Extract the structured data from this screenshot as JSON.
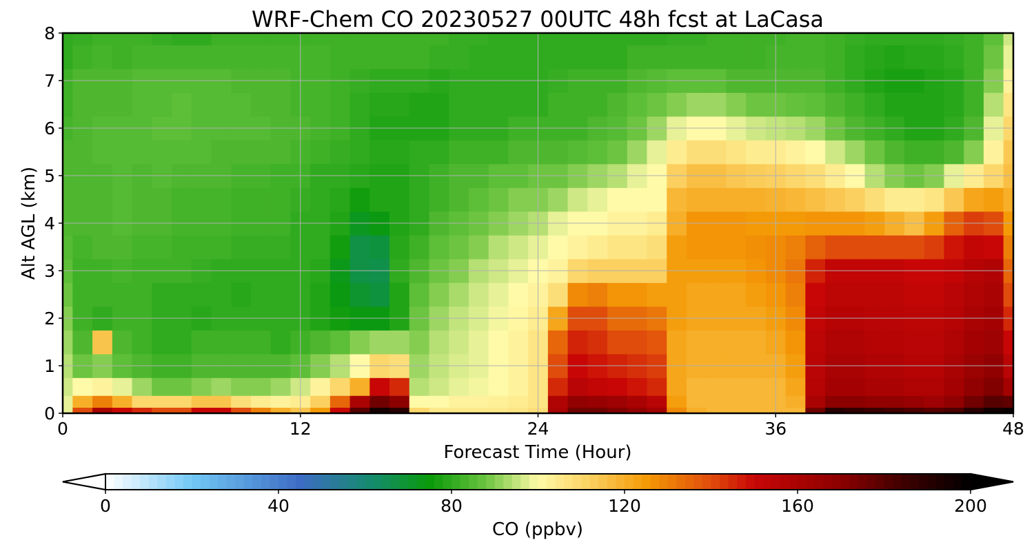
{
  "chart_data": {
    "type": "heatmap",
    "title": "WRF-Chem CO  20230527 00UTC 48h fcst at LaCasa",
    "xlabel": "Forecast Time (Hour)",
    "ylabel": "Alt AGL (km)",
    "xlim": [
      0,
      48
    ],
    "ylim": [
      0,
      8
    ],
    "xticks": [
      0,
      12,
      24,
      36,
      48
    ],
    "yticks": [
      0,
      1,
      2,
      3,
      4,
      5,
      6,
      7,
      8
    ],
    "grid": true,
    "colorbar": {
      "label": "CO  (ppbv)",
      "min": 0,
      "max": 200,
      "ticks": [
        0,
        40,
        80,
        120,
        160,
        200
      ],
      "extend": "both",
      "orientation": "horizontal",
      "stops": [
        {
          "v": 0,
          "c": "#ffffff"
        },
        {
          "v": 20,
          "c": "#72c8f5"
        },
        {
          "v": 45,
          "c": "#3d6cc4"
        },
        {
          "v": 62,
          "c": "#148c6a"
        },
        {
          "v": 75,
          "c": "#0a9a0a"
        },
        {
          "v": 88,
          "c": "#6cc440"
        },
        {
          "v": 100,
          "c": "#fffaa8"
        },
        {
          "v": 112,
          "c": "#fbd060"
        },
        {
          "v": 125,
          "c": "#f49a06"
        },
        {
          "v": 140,
          "c": "#e04c0c"
        },
        {
          "v": 150,
          "c": "#c80606"
        },
        {
          "v": 170,
          "c": "#8c0000"
        },
        {
          "v": 185,
          "c": "#3c0000"
        },
        {
          "v": 200,
          "c": "#000000"
        }
      ]
    },
    "x_hours": [
      0,
      1,
      2,
      3,
      4,
      5,
      6,
      7,
      8,
      9,
      10,
      11,
      12,
      13,
      14,
      15,
      16,
      17,
      18,
      19,
      20,
      21,
      22,
      23,
      24,
      25,
      26,
      27,
      28,
      29,
      30,
      31,
      32,
      33,
      34,
      35,
      36,
      37,
      38,
      39,
      40,
      41,
      42,
      43,
      44,
      45,
      46,
      47,
      48
    ],
    "y_km": [
      0,
      0.25,
      0.5,
      1,
      1.5,
      2,
      2.5,
      3,
      3.5,
      4,
      4.5,
      5,
      5.5,
      6,
      6.5,
      7,
      7.5,
      8
    ],
    "values": [
      [
        98,
        140,
        160,
        150,
        145,
        140,
        140,
        150,
        150,
        140,
        130,
        120,
        115,
        125,
        150,
        180,
        195,
        190,
        110,
        105,
        105,
        105,
        105,
        106,
        108,
        160,
        175,
        175,
        172,
        168,
        162,
        128,
        120,
        118,
        118,
        118,
        118,
        118,
        175,
        190,
        188,
        186,
        184,
        182,
        180,
        182,
        190,
        196,
        198
      ],
      [
        98,
        120,
        130,
        120,
        110,
        110,
        110,
        115,
        115,
        108,
        104,
        102,
        104,
        112,
        135,
        160,
        175,
        170,
        100,
        100,
        102,
        102,
        103,
        104,
        106,
        158,
        168,
        166,
        164,
        160,
        155,
        124,
        118,
        118,
        118,
        118,
        118,
        120,
        160,
        170,
        170,
        168,
        168,
        166,
        164,
        168,
        175,
        180,
        178
      ],
      [
        96,
        100,
        102,
        98,
        92,
        88,
        88,
        90,
        92,
        90,
        90,
        92,
        96,
        102,
        110,
        120,
        150,
        145,
        94,
        96,
        98,
        99,
        100,
        102,
        106,
        145,
        155,
        152,
        150,
        148,
        145,
        122,
        118,
        118,
        118,
        118,
        118,
        122,
        156,
        162,
        162,
        160,
        160,
        158,
        158,
        162,
        168,
        172,
        162
      ],
      [
        94,
        88,
        90,
        86,
        84,
        82,
        82,
        84,
        84,
        84,
        84,
        84,
        86,
        90,
        94,
        100,
        110,
        108,
        92,
        95,
        97,
        98,
        100,
        102,
        106,
        140,
        150,
        148,
        146,
        144,
        142,
        122,
        120,
        120,
        120,
        120,
        120,
        124,
        155,
        160,
        160,
        158,
        158,
        156,
        156,
        160,
        165,
        168,
        155
      ],
      [
        92,
        84,
        115,
        84,
        82,
        80,
        80,
        82,
        82,
        82,
        82,
        80,
        82,
        84,
        86,
        90,
        92,
        92,
        90,
        94,
        96,
        98,
        100,
        102,
        106,
        135,
        146,
        144,
        140,
        140,
        138,
        122,
        120,
        120,
        120,
        120,
        122,
        126,
        154,
        158,
        158,
        156,
        156,
        155,
        155,
        158,
        162,
        164,
        150
      ],
      [
        90,
        82,
        80,
        82,
        82,
        80,
        80,
        79,
        80,
        80,
        80,
        80,
        80,
        78,
        76,
        74,
        74,
        78,
        88,
        92,
        95,
        97,
        99,
        101,
        104,
        122,
        140,
        140,
        134,
        134,
        132,
        124,
        122,
        122,
        122,
        122,
        124,
        128,
        152,
        156,
        156,
        155,
        155,
        154,
        154,
        156,
        160,
        162,
        145
      ],
      [
        88,
        82,
        82,
        82,
        82,
        80,
        80,
        80,
        80,
        79,
        80,
        80,
        80,
        78,
        74,
        70,
        68,
        78,
        86,
        90,
        93,
        96,
        98,
        100,
        102,
        108,
        128,
        130,
        126,
        126,
        124,
        124,
        122,
        122,
        122,
        124,
        126,
        130,
        150,
        154,
        154,
        154,
        154,
        152,
        152,
        155,
        158,
        160,
        140
      ],
      [
        86,
        82,
        82,
        83,
        82,
        82,
        82,
        81,
        80,
        80,
        80,
        80,
        80,
        79,
        73,
        67,
        66,
        80,
        84,
        88,
        90,
        94,
        96,
        98,
        100,
        102,
        110,
        112,
        112,
        112,
        112,
        124,
        124,
        124,
        124,
        126,
        128,
        132,
        146,
        152,
        152,
        152,
        152,
        150,
        150,
        152,
        156,
        158,
        135
      ],
      [
        85,
        83,
        84,
        84,
        83,
        83,
        82,
        82,
        82,
        81,
        81,
        81,
        80,
        80,
        76,
        67,
        68,
        79,
        82,
        86,
        88,
        90,
        94,
        96,
        98,
        100,
        102,
        104,
        106,
        106,
        108,
        124,
        126,
        126,
        126,
        127,
        128,
        130,
        136,
        140,
        140,
        140,
        140,
        140,
        142,
        148,
        152,
        150,
        130
      ],
      [
        84,
        84,
        84,
        85,
        84,
        84,
        83,
        83,
        83,
        82,
        82,
        82,
        80,
        80,
        78,
        72,
        74,
        78,
        80,
        84,
        86,
        88,
        90,
        92,
        94,
        98,
        100,
        100,
        102,
        102,
        104,
        120,
        126,
        126,
        126,
        125,
        125,
        125,
        126,
        126,
        126,
        124,
        120,
        116,
        124,
        136,
        142,
        140,
        125
      ],
      [
        84,
        84,
        84,
        85,
        84,
        84,
        83,
        83,
        83,
        82,
        82,
        82,
        81,
        80,
        79,
        76,
        78,
        78,
        80,
        82,
        84,
        86,
        88,
        90,
        90,
        92,
        96,
        98,
        100,
        100,
        100,
        118,
        120,
        120,
        120,
        120,
        119,
        118,
        116,
        114,
        112,
        108,
        104,
        104,
        106,
        114,
        122,
        124,
        120
      ],
      [
        84,
        84,
        84,
        85,
        84,
        85,
        84,
        84,
        84,
        83,
        83,
        82,
        82,
        80,
        80,
        79,
        78,
        78,
        80,
        82,
        84,
        84,
        86,
        86,
        88,
        88,
        90,
        92,
        94,
        98,
        100,
        112,
        116,
        116,
        114,
        113,
        112,
        110,
        108,
        104,
        100,
        94,
        90,
        88,
        90,
        98,
        104,
        110,
        116
      ],
      [
        84,
        84,
        85,
        85,
        85,
        85,
        85,
        85,
        84,
        84,
        84,
        84,
        83,
        82,
        81,
        80,
        79,
        79,
        80,
        80,
        82,
        82,
        82,
        84,
        84,
        84,
        85,
        86,
        88,
        92,
        98,
        104,
        108,
        108,
        106,
        104,
        104,
        102,
        100,
        96,
        92,
        88,
        84,
        82,
        82,
        84,
        90,
        102,
        114
      ],
      [
        83,
        84,
        85,
        85,
        85,
        86,
        86,
        85,
        85,
        85,
        85,
        84,
        84,
        83,
        82,
        80,
        78,
        78,
        78,
        78,
        80,
        80,
        80,
        82,
        82,
        82,
        82,
        84,
        85,
        88,
        92,
        98,
        100,
        100,
        98,
        96,
        95,
        94,
        92,
        88,
        84,
        82,
        80,
        78,
        78,
        80,
        84,
        98,
        110
      ],
      [
        82,
        84,
        84,
        84,
        85,
        85,
        86,
        85,
        85,
        85,
        84,
        84,
        83,
        83,
        82,
        80,
        79,
        79,
        78,
        78,
        80,
        80,
        80,
        80,
        80,
        82,
        82,
        82,
        84,
        86,
        88,
        90,
        92,
        92,
        90,
        88,
        88,
        87,
        86,
        84,
        82,
        80,
        78,
        78,
        78,
        79,
        82,
        94,
        106
      ],
      [
        82,
        84,
        84,
        84,
        85,
        85,
        85,
        85,
        85,
        84,
        84,
        84,
        83,
        83,
        82,
        81,
        80,
        80,
        80,
        79,
        80,
        80,
        80,
        80,
        80,
        81,
        82,
        82,
        82,
        84,
        85,
        86,
        86,
        86,
        84,
        84,
        84,
        84,
        84,
        82,
        80,
        78,
        77,
        77,
        78,
        79,
        82,
        90,
        102
      ],
      [
        80,
        82,
        83,
        82,
        83,
        83,
        83,
        83,
        83,
        83,
        83,
        83,
        83,
        83,
        82,
        82,
        82,
        82,
        82,
        81,
        81,
        80,
        80,
        80,
        80,
        80,
        80,
        80,
        80,
        82,
        82,
        82,
        82,
        82,
        82,
        82,
        83,
        83,
        83,
        82,
        80,
        79,
        78,
        79,
        79,
        80,
        82,
        88,
        98
      ],
      [
        80,
        81,
        82,
        82,
        82,
        81,
        80,
        80,
        82,
        82,
        82,
        82,
        82,
        82,
        82,
        82,
        82,
        82,
        82,
        82,
        81,
        81,
        80,
        80,
        80,
        80,
        80,
        80,
        80,
        80,
        80,
        81,
        81,
        82,
        82,
        82,
        82,
        83,
        83,
        82,
        81,
        80,
        80,
        80,
        80,
        81,
        82,
        86,
        96
      ]
    ]
  }
}
